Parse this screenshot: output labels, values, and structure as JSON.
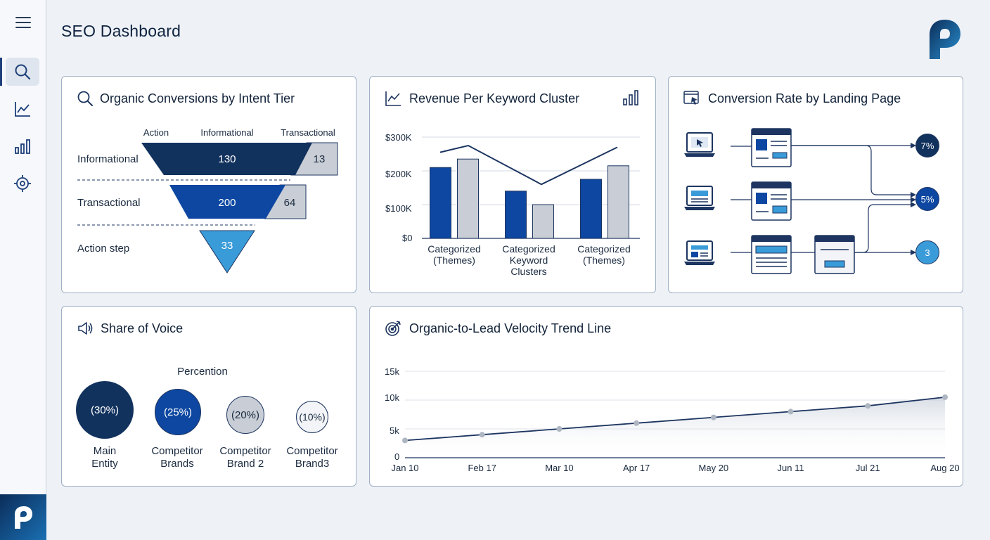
{
  "page": {
    "title": "SEO Dashboard"
  },
  "sidebar": {
    "items": [
      {
        "name": "search-icon",
        "active": true
      },
      {
        "name": "trend-icon",
        "active": false
      },
      {
        "name": "bar-chart-icon",
        "active": false
      },
      {
        "name": "target-icon",
        "active": false
      }
    ]
  },
  "intent_tier": {
    "title": "Organic Conversions by Intent Tier",
    "col_headers": [
      "Action",
      "Informational",
      "Transactional"
    ],
    "rows": [
      {
        "label": "Informational",
        "main": "130",
        "side": "13"
      },
      {
        "label": "Transactional",
        "main": "200",
        "side": "64"
      },
      {
        "label": "Action step",
        "main": "33"
      }
    ]
  },
  "revenue": {
    "title": "Revenue Per Keyword Cluster",
    "yticks": [
      "$300K",
      "$200K",
      "$100K",
      "$0"
    ],
    "categories": [
      {
        "line1": "Categorized",
        "line2": "(Themes)",
        "line3": ""
      },
      {
        "line1": "Categorized",
        "line2": "Keyword",
        "line3": "Clusters"
      },
      {
        "line1": "Categorized",
        "line2": "(Themes)",
        "line3": ""
      }
    ]
  },
  "landing": {
    "title": "Conversion Rate by Landing Page",
    "rates": [
      "7%",
      "5%",
      "3"
    ]
  },
  "sov": {
    "title": "Share of Voice",
    "subtitle": "Percention",
    "entities": [
      {
        "value": "(30%)",
        "line1": "Main",
        "line2": "Entity"
      },
      {
        "value": "(25%)",
        "line1": "Competitor",
        "line2": "Brands"
      },
      {
        "value": "(20%)",
        "line1": "Competitor",
        "line2": "Brand 2"
      },
      {
        "value": "(10%)",
        "line1": "Competitor",
        "line2": "Brand3"
      }
    ]
  },
  "velocity": {
    "title": "Organic-to-Lead Velocity Trend Line",
    "yticks": [
      "15k",
      "10k",
      "5k",
      "0"
    ]
  },
  "chart_data": [
    {
      "type": "bar",
      "title": "Revenue Per Keyword Cluster",
      "categories": [
        "Categorized (Themes)",
        "Categorized Keyword Clusters",
        "Categorized (Themes)"
      ],
      "ylim": [
        0,
        300000
      ],
      "series": [
        {
          "values": [
            210000,
            140000,
            175000
          ],
          "color": "#0d47a1"
        },
        {
          "values": [
            235000,
            100000,
            215000
          ],
          "color": "#c9ced6"
        }
      ],
      "line": {
        "values": [
          275000,
          160000,
          270000
        ],
        "start": 255000,
        "color": "#1d3560"
      },
      "grid": true
    },
    {
      "type": "line",
      "title": "Organic-to-Lead Velocity Trend Line",
      "x": [
        "Jan 10",
        "Feb 17",
        "Mar 10",
        "Apr 17",
        "May 20",
        "Jun 11",
        "Jul 21",
        "Aug 20"
      ],
      "y": [
        3000,
        4000,
        5000,
        6000,
        7000,
        8000,
        9000,
        10500
      ],
      "ylim": [
        0,
        15000
      ],
      "grid": true
    }
  ],
  "colors": {
    "navy": "#12325e",
    "blue": "#0d47a1",
    "light_blue": "#3a9bd9",
    "gray": "#c9ced6"
  }
}
